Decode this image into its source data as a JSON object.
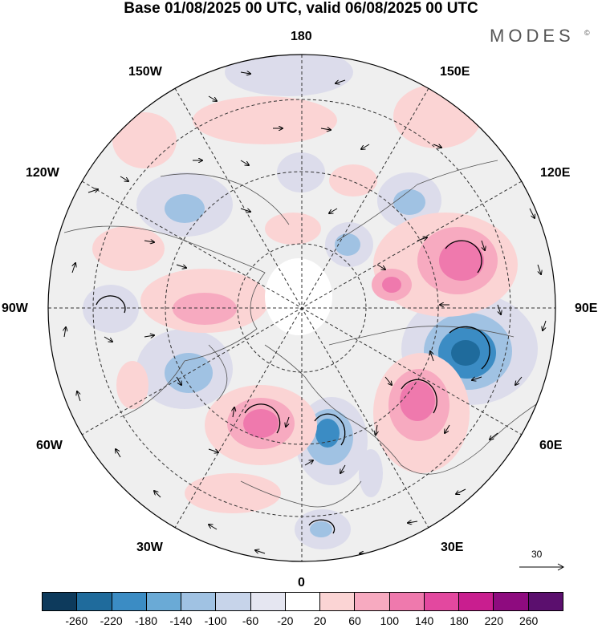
{
  "title": "Base 01/08/2025 00 UTC, valid 06/08/2025 00 UTC",
  "brand": "MODES",
  "brand_mark": "©",
  "longitude_labels": {
    "lon_180": "180",
    "lon_150w": "150W",
    "lon_150e": "150E",
    "lon_120w": "120W",
    "lon_120e": "120E",
    "lon_90w": "90W",
    "lon_90e": "90E",
    "lon_60w": "60W",
    "lon_60e": "60E",
    "lon_30w": "30W",
    "lon_30e": "30E",
    "lon_0": "0"
  },
  "reference_vector": "30",
  "colorbar": {
    "colors": [
      "#0d3a5c",
      "#1f6b9c",
      "#3b8cc4",
      "#6aaad6",
      "#a0c2e3",
      "#c7d4ea",
      "#e5e6f1",
      "#ffffff",
      "#fbd4d4",
      "#f7aac0",
      "#ef79ad",
      "#e3489f",
      "#c91e8f",
      "#8e0b7f",
      "#5b0f6e"
    ],
    "ticks": [
      "-260",
      "-220",
      "-180",
      "-140",
      "-100",
      "-60",
      "-20",
      "20",
      "60",
      "100",
      "140",
      "180",
      "220",
      "260"
    ]
  },
  "anomaly_colors": {
    "neg_light": "#dcdceb",
    "neg_mid": "#a0c2e3",
    "neg_strong": "#3b8cc4",
    "neg_core": "#1f6b9c",
    "pos_light": "#fbd4d4",
    "pos_mid": "#f7aac0",
    "pos_strong": "#ef79ad",
    "pos_core": "#e3489f"
  }
}
